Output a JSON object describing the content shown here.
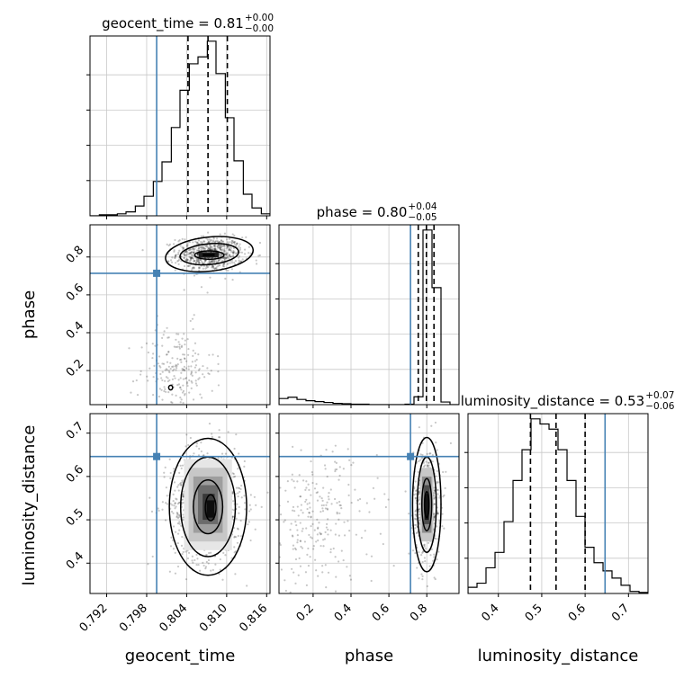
{
  "chart_data": {
    "type": "corner",
    "parameters": [
      "geocent_time",
      "phase",
      "luminosity_distance"
    ],
    "axis_labels": {
      "geocent_time": "geocent_time",
      "phase": "phase",
      "luminosity_distance": "luminosity_distance"
    },
    "ranges": {
      "geocent_time": [
        0.7895,
        0.8165
      ],
      "phase": [
        0.02,
        0.97
      ],
      "luminosity_distance": [
        0.33,
        0.745
      ]
    },
    "ticks": {
      "geocent_time": {
        "values": [
          0.792,
          0.798,
          0.804,
          0.81,
          0.816
        ],
        "labels": [
          "0.792",
          "0.798",
          "0.804",
          "0.810",
          "0.816"
        ]
      },
      "phase_x": {
        "values": [
          0.2,
          0.4,
          0.6,
          0.8
        ],
        "labels": [
          "0.2",
          "0.4",
          "0.6",
          "0.8"
        ]
      },
      "phase_y": {
        "values": [
          0.2,
          0.4,
          0.6,
          0.8
        ],
        "labels": [
          "0.2",
          "0.4",
          "0.6",
          "0.8"
        ]
      },
      "luminosity_distance_x": {
        "values": [
          0.4,
          0.5,
          0.6,
          0.7
        ],
        "labels": [
          "0.4",
          "0.5",
          "0.6",
          "0.7"
        ]
      },
      "luminosity_distance_y": {
        "values": [
          0.4,
          0.5,
          0.6,
          0.7
        ],
        "labels": [
          "0.4",
          "0.5",
          "0.6",
          "0.7"
        ]
      }
    },
    "truths": {
      "geocent_time": 0.7995,
      "phase": 0.714,
      "luminosity_distance": 0.646
    },
    "truth_color": "#4682b4",
    "titles": [
      {
        "param": "geocent_time",
        "prefix": "geocent_time = ",
        "median": "0.81",
        "plus": "+0.00",
        "minus": "−0.00"
      },
      {
        "param": "phase",
        "prefix": "phase = ",
        "median": "0.80",
        "plus": "+0.04",
        "minus": "−0.05"
      },
      {
        "param": "luminosity_distance",
        "prefix": "luminosity_distance = ",
        "median": "0.53",
        "plus": "+0.07",
        "minus": "−0.06"
      }
    ],
    "quantiles": {
      "geocent_time": [
        0.8042,
        0.8072,
        0.8101
      ],
      "phase": [
        0.755,
        0.798,
        0.838
      ],
      "luminosity_distance": [
        0.474,
        0.533,
        0.6
      ]
    },
    "histograms": {
      "geocent_time": {
        "edges": [
          0.7895,
          0.7909,
          0.7922,
          0.7936,
          0.7949,
          0.7963,
          0.7976,
          0.799,
          0.8003,
          0.8017,
          0.803,
          0.8044,
          0.8057,
          0.8071,
          0.8084,
          0.8098,
          0.8111,
          0.8125,
          0.8138,
          0.8152,
          0.8165
        ],
        "counts": [
          0,
          1,
          1,
          2,
          4,
          10,
          20,
          35,
          55,
          90,
          128,
          155,
          162,
          178,
          145,
          100,
          56,
          22,
          8,
          2
        ]
      },
      "phase": {
        "edges": [
          0.02,
          0.0675,
          0.115,
          0.1625,
          0.21,
          0.2575,
          0.305,
          0.3525,
          0.4,
          0.4475,
          0.495,
          0.5425,
          0.59,
          0.6375,
          0.685,
          0.7325,
          0.78,
          0.8275,
          0.875,
          0.9225,
          0.97
        ],
        "counts": [
          14,
          17,
          12,
          9,
          7,
          5,
          3,
          2,
          1,
          1,
          0,
          0,
          0,
          0,
          1,
          18,
          400,
          268,
          6,
          0
        ]
      },
      "luminosity_distance": {
        "edges": [
          0.33,
          0.3508,
          0.3715,
          0.3923,
          0.413,
          0.4338,
          0.4545,
          0.4753,
          0.496,
          0.5168,
          0.5375,
          0.5583,
          0.579,
          0.5998,
          0.6205,
          0.6413,
          0.662,
          0.6828,
          0.7035,
          0.7243,
          0.745
        ],
        "counts": [
          6,
          10,
          25,
          40,
          70,
          110,
          140,
          170,
          165,
          160,
          140,
          110,
          75,
          45,
          30,
          22,
          15,
          8,
          2,
          1
        ]
      }
    },
    "scatter_clusters": {
      "phase_vs_geocent_time": [
        {
          "x": 0.8075,
          "y": 0.815,
          "sx": 0.0025,
          "sy": 0.045,
          "n": 700
        },
        {
          "x": 0.8025,
          "y": 0.2,
          "sx": 0.0028,
          "sy": 0.12,
          "n": 220
        }
      ],
      "luminosity_distance_vs_geocent_time": [
        {
          "x": 0.8072,
          "y": 0.535,
          "sx": 0.0028,
          "sy": 0.065,
          "n": 900
        }
      ],
      "luminosity_distance_vs_phase": [
        {
          "x": 0.8,
          "y": 0.535,
          "sx": 0.035,
          "sy": 0.065,
          "n": 550
        },
        {
          "x": 0.22,
          "y": 0.5,
          "sx": 0.16,
          "sy": 0.08,
          "n": 250
        }
      ]
    },
    "density_blocks": {
      "phase_vs_geocent_time": [
        {
          "x0": 0.8058,
          "x1": 0.8088,
          "y0": 0.797,
          "y1": 0.825,
          "shade": 0.12
        },
        {
          "x0": 0.8064,
          "x1": 0.8082,
          "y0": 0.803,
          "y1": 0.818,
          "shade": 0.02
        }
      ],
      "luminosity_distance_vs_geocent_time": [
        {
          "x0": 0.8036,
          "x1": 0.8108,
          "y0": 0.43,
          "y1": 0.64,
          "shade": 0.9
        },
        {
          "x0": 0.8043,
          "x1": 0.8101,
          "y0": 0.45,
          "y1": 0.62,
          "shade": 0.78
        },
        {
          "x0": 0.805,
          "x1": 0.8094,
          "y0": 0.47,
          "y1": 0.6,
          "shade": 0.62
        },
        {
          "x0": 0.8057,
          "x1": 0.8087,
          "y0": 0.49,
          "y1": 0.58,
          "shade": 0.42
        },
        {
          "x0": 0.8064,
          "x1": 0.8082,
          "y0": 0.5,
          "y1": 0.56,
          "shade": 0.22
        },
        {
          "x0": 0.807,
          "x1": 0.8082,
          "y0": 0.505,
          "y1": 0.545,
          "shade": 0.05
        }
      ],
      "luminosity_distance_vs_phase": [
        {
          "x0": 0.765,
          "x1": 0.835,
          "y0": 0.45,
          "y1": 0.62,
          "shade": 0.78
        },
        {
          "x0": 0.775,
          "x1": 0.825,
          "y0": 0.47,
          "y1": 0.6,
          "shade": 0.55
        },
        {
          "x0": 0.785,
          "x1": 0.815,
          "y0": 0.49,
          "y1": 0.58,
          "shade": 0.3
        },
        {
          "x0": 0.79,
          "x1": 0.81,
          "y0": 0.5,
          "y1": 0.56,
          "shade": 0.08
        }
      ]
    },
    "contours": {
      "phase_vs_geocent_time": [
        {
          "cx": 0.8074,
          "cy": 0.815,
          "rx": 0.0066,
          "ry": 0.09,
          "tilt": -6
        },
        {
          "cx": 0.8074,
          "cy": 0.815,
          "rx": 0.0044,
          "ry": 0.055,
          "tilt": -5
        },
        {
          "cx": 0.8074,
          "cy": 0.81,
          "rx": 0.0022,
          "ry": 0.022,
          "tilt": 0
        },
        {
          "cx": 0.8016,
          "cy": 0.11,
          "rx": 0.0003,
          "ry": 0.012,
          "tilt": 0
        }
      ],
      "luminosity_distance_vs_geocent_time": [
        {
          "cx": 0.8072,
          "cy": 0.53,
          "rx": 0.0058,
          "ry": 0.158,
          "tilt": 0
        },
        {
          "cx": 0.8072,
          "cy": 0.53,
          "rx": 0.0041,
          "ry": 0.115,
          "tilt": 0
        },
        {
          "cx": 0.8072,
          "cy": 0.53,
          "rx": 0.0022,
          "ry": 0.062,
          "tilt": 0
        },
        {
          "cx": 0.8076,
          "cy": 0.528,
          "rx": 0.0008,
          "ry": 0.03,
          "tilt": 0
        }
      ],
      "luminosity_distance_vs_phase": [
        {
          "cx": 0.8,
          "cy": 0.535,
          "rx": 0.075,
          "ry": 0.155,
          "tilt": 0
        },
        {
          "cx": 0.8,
          "cy": 0.535,
          "rx": 0.05,
          "ry": 0.11,
          "tilt": 0
        },
        {
          "cx": 0.8,
          "cy": 0.535,
          "rx": 0.026,
          "ry": 0.06,
          "tilt": 0
        },
        {
          "cx": 0.8,
          "cy": 0.535,
          "rx": 0.012,
          "ry": 0.03,
          "tilt": 0
        }
      ]
    },
    "grid": true
  }
}
